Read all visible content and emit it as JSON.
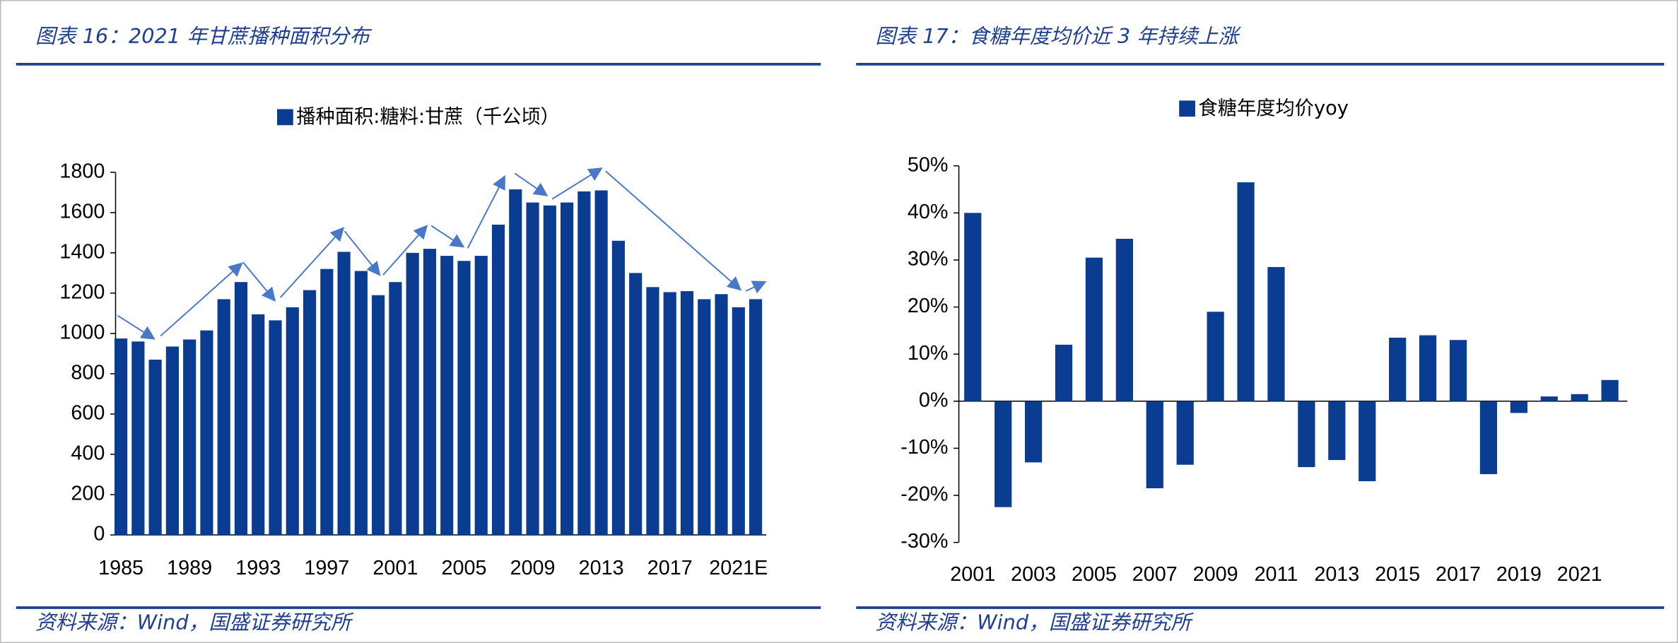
{
  "header_left": "图表 16：2021 年甘蔗播种面积分布",
  "header_right": "图表 17：食糖年度均价近 3 年持续上涨",
  "source_left": "资料来源：Wind，国盛证券研究所",
  "source_right": "资料来源：Wind，国盛证券研究所",
  "chart_data": [
    {
      "type": "bar",
      "categories": [
        "1985",
        null,
        null,
        null,
        "1989",
        null,
        null,
        null,
        "1993",
        null,
        null,
        null,
        "1997",
        null,
        null,
        null,
        "2001",
        null,
        null,
        null,
        "2005",
        null,
        null,
        null,
        "2009",
        null,
        null,
        null,
        "2013",
        null,
        null,
        null,
        "2017",
        null,
        null,
        null,
        "2021E",
        null
      ],
      "series": [
        {
          "name": "播种面积:糖料:甘蔗（千公顷）",
          "color": "#0a3d91",
          "values": [
            975,
            960,
            870,
            935,
            970,
            1015,
            1170,
            1255,
            1095,
            1065,
            1130,
            1215,
            1320,
            1405,
            1310,
            1190,
            1255,
            1400,
            1420,
            1385,
            1360,
            1385,
            1540,
            1715,
            1650,
            1635,
            1650,
            1705,
            1710,
            1460,
            1300,
            1230,
            1205,
            1210,
            1170,
            1195,
            1130,
            1170
          ]
        }
      ],
      "ylim": [
        0,
        1800
      ],
      "yticks": [
        0,
        200,
        400,
        600,
        800,
        1000,
        1200,
        1400,
        1600,
        1800
      ],
      "grid": false
    },
    {
      "type": "bar",
      "categories": [
        "2001",
        null,
        "2003",
        null,
        "2005",
        null,
        "2007",
        null,
        "2009",
        null,
        "2011",
        null,
        "2013",
        null,
        "2015",
        null,
        "2017",
        null,
        "2019",
        null,
        "2021",
        null
      ],
      "series": [
        {
          "name": "食糖年度均价yoy",
          "color": "#0a3d91",
          "values": [
            40,
            -22.5,
            -13,
            12,
            30.5,
            34.5,
            -18.5,
            -13.5,
            19,
            46.5,
            28.5,
            -14,
            -12.5,
            -17,
            13.5,
            14,
            13,
            -15.5,
            -2.5,
            1,
            1.5,
            4.5
          ]
        }
      ],
      "ylim": [
        -30,
        50
      ],
      "yticks": [
        {
          "value": -30,
          "label": "-30%"
        },
        {
          "value": -20,
          "label": "-20%"
        },
        {
          "value": -10,
          "label": "-10%"
        },
        {
          "value": 0,
          "label": "0%"
        },
        {
          "value": 10,
          "label": "10%"
        },
        {
          "value": 20,
          "label": "20%"
        },
        {
          "value": 30,
          "label": "30%"
        },
        {
          "value": 40,
          "label": "40%"
        },
        {
          "value": 50,
          "label": "50%"
        }
      ],
      "grid": false
    }
  ]
}
